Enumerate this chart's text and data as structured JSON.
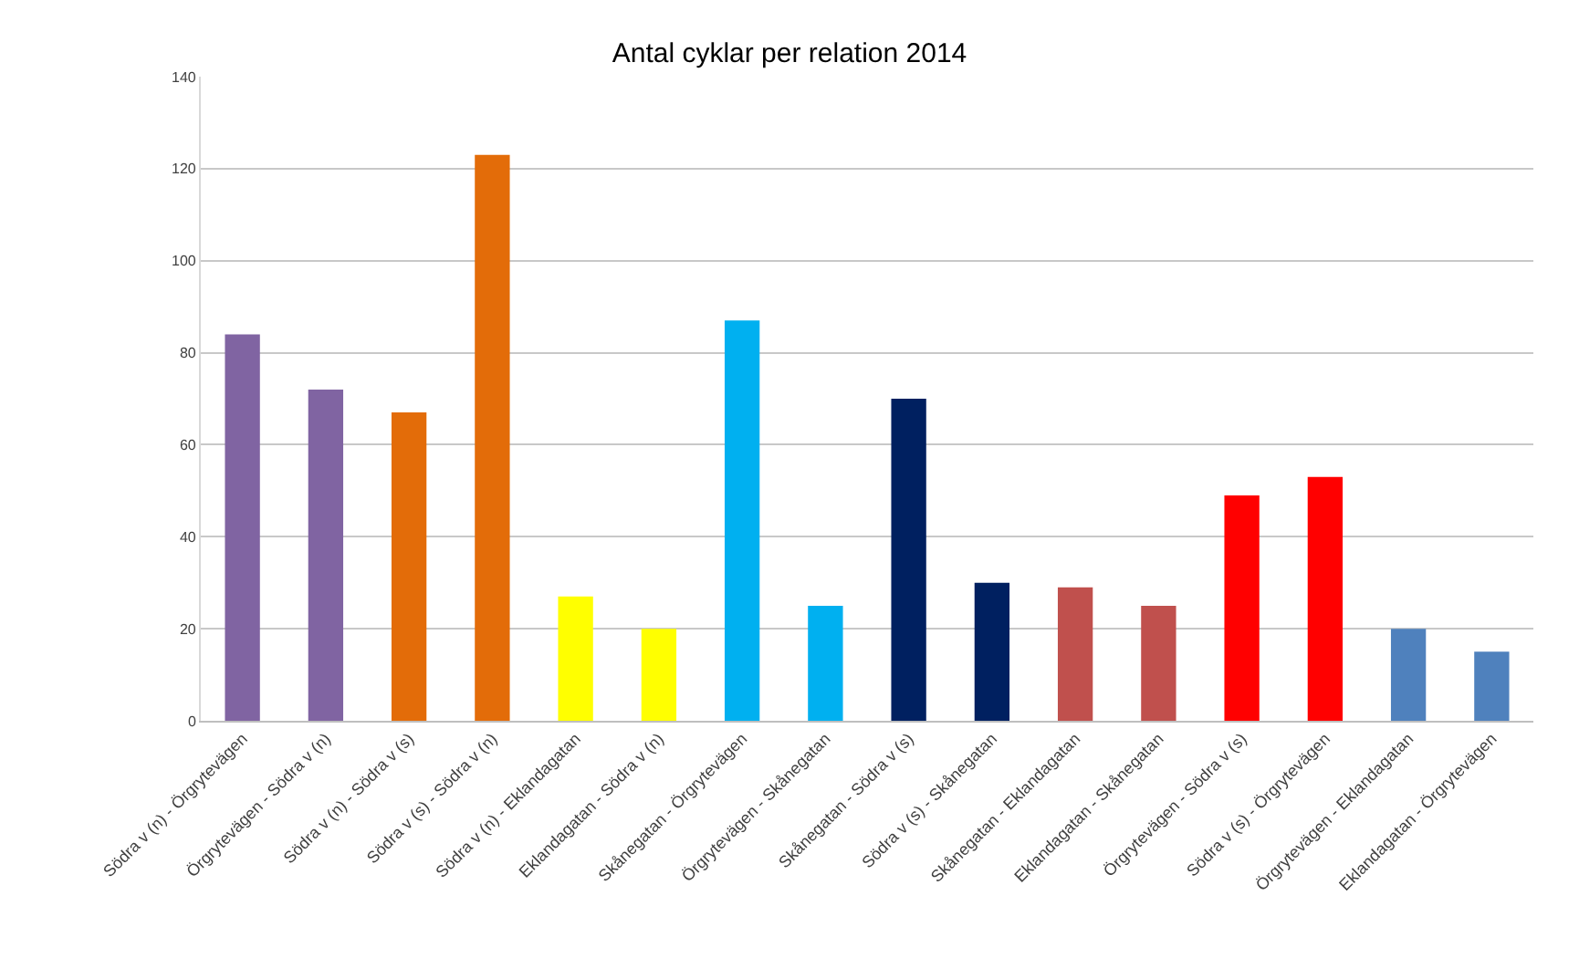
{
  "chart_data": {
    "type": "bar",
    "title": "Antal cyklar per relation 2014",
    "categories": [
      "Södra v (n) - Örgrytevägen",
      "Örgrytevägen - Södra v (n)",
      "Södra v (n) - Södra v (s)",
      "Södra v (s) - Södra v (n)",
      "Södra v (n) - Eklandagatan",
      "Eklandagatan - Södra v (n)",
      "Skånegatan - Örgrytevägen",
      "Örgrytevägen - Skånegatan",
      "Skånegatan - Södra v (s)",
      "Södra v (s) - Skånegatan",
      "Skånegatan - Eklandagatan",
      "Eklandagatan - Skånegatan",
      "Örgrytevägen - Södra v (s)",
      "Södra v (s) - Örgrytevägen",
      "Örgrytevägen - Eklandagatan",
      "Eklandagatan - Örgrytevägen"
    ],
    "values": [
      84,
      72,
      67,
      123,
      27,
      20,
      87,
      25,
      70,
      30,
      29,
      25,
      49,
      53,
      20,
      15
    ],
    "colors": [
      "#8064a2",
      "#8064a2",
      "#e36c09",
      "#e36c09",
      "#ffff00",
      "#ffff00",
      "#00b0f0",
      "#00b0f0",
      "#002060",
      "#002060",
      "#c0504d",
      "#c0504d",
      "#ff0000",
      "#ff0000",
      "#4f81bd",
      "#4f81bd"
    ],
    "ylim": [
      0,
      140
    ],
    "yticks": [
      0,
      20,
      40,
      60,
      80,
      100,
      120,
      140
    ],
    "grid": "y"
  }
}
